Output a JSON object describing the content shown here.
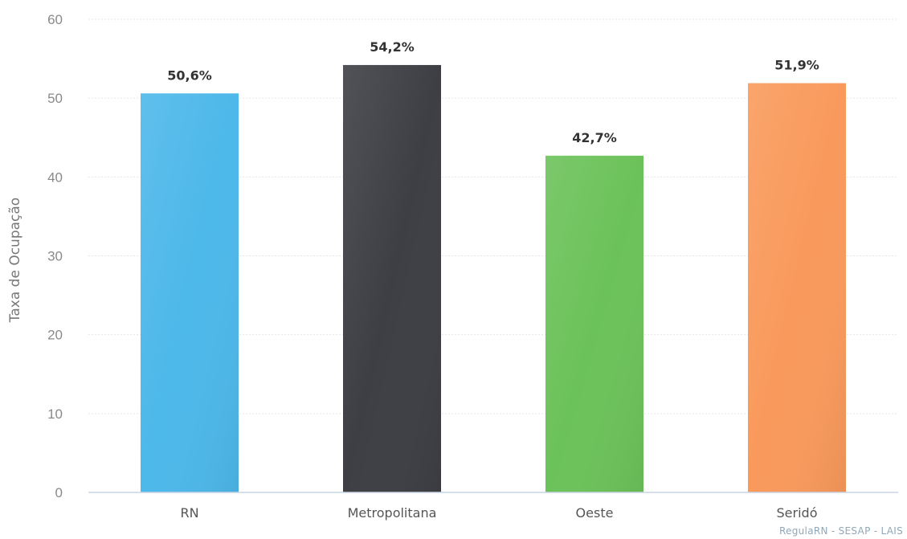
{
  "chart_data": {
    "type": "bar",
    "categories": [
      "RN",
      "Metropolitana",
      "Oeste",
      "Seridó"
    ],
    "values": [
      50.6,
      54.2,
      42.7,
      51.9
    ],
    "data_labels": [
      "50,6%",
      "54,2%",
      "42,7%",
      "51,9%"
    ],
    "title": "",
    "xlabel": "",
    "ylabel": "Taxa de Ocupação",
    "ylim": [
      0,
      60
    ],
    "yticks": [
      0,
      10,
      20,
      30,
      40,
      50,
      60
    ],
    "ytick_labels": [
      "0",
      "10",
      "20",
      "30",
      "40",
      "50",
      "60"
    ],
    "grid": true,
    "legend": "none",
    "colors": [
      "#4db8ea",
      "#3e3f44",
      "#6cc25a",
      "#f99a5c"
    ],
    "credit": "RegulaRN - SESAP - LAIS"
  }
}
